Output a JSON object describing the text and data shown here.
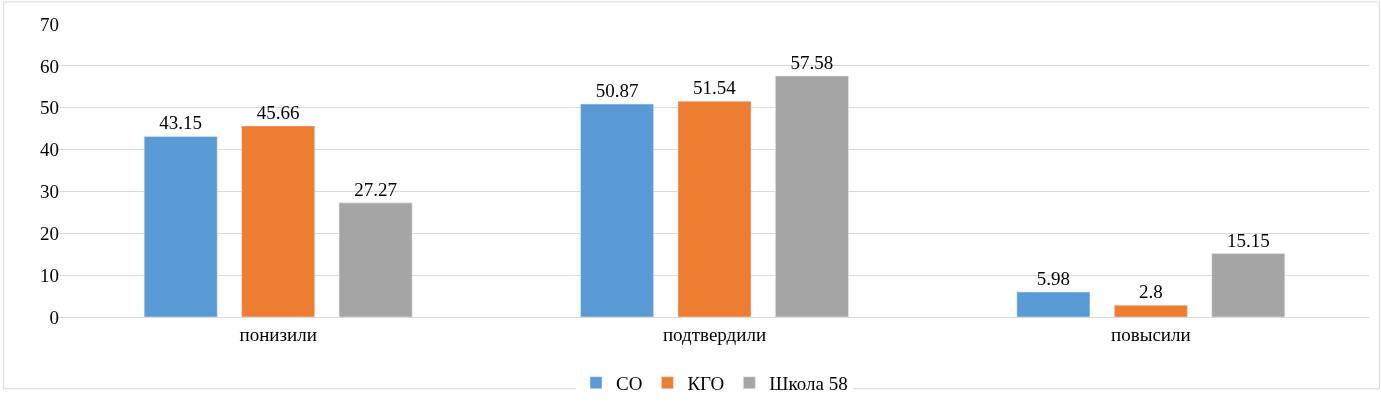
{
  "chart_data": {
    "type": "bar",
    "categories": [
      "понизили",
      "подтвердили",
      "повысили"
    ],
    "series": [
      {
        "name": "СО",
        "color": "#5b9bd5",
        "values": [
          43.15,
          50.87,
          5.98
        ]
      },
      {
        "name": "КГО",
        "color": "#ed7d31",
        "values": [
          45.66,
          51.54,
          2.8
        ]
      },
      {
        "name": "Школа 58",
        "color": "#a5a5a5",
        "values": [
          27.27,
          57.58,
          15.15
        ]
      }
    ],
    "ylim": [
      0,
      70
    ],
    "yticks": [
      0,
      10,
      20,
      30,
      40,
      50,
      60,
      70
    ],
    "grid": "y",
    "legend": "bottom",
    "data_labels": true
  }
}
